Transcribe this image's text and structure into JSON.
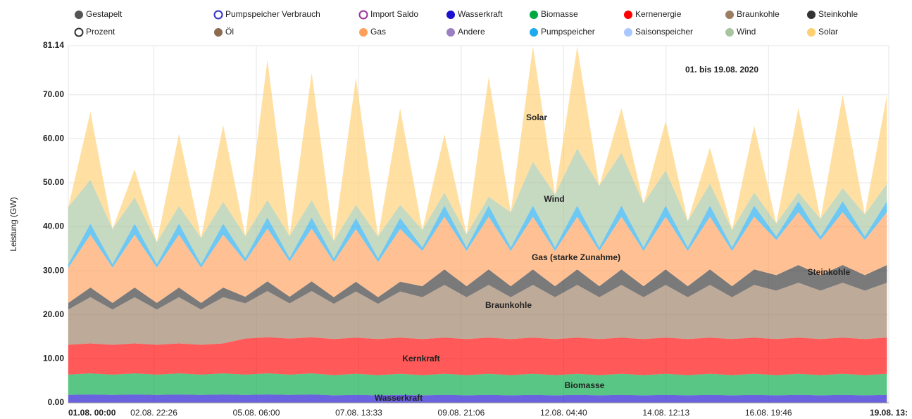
{
  "chart_data": {
    "type": "stacked_area",
    "y_label": "Leistung (GW)",
    "x": [
      0,
      12,
      24,
      36,
      48,
      60,
      72,
      84,
      96,
      108,
      120,
      132,
      144,
      156,
      168,
      180,
      192,
      204,
      216,
      228,
      240,
      252,
      264,
      276,
      288,
      300,
      312,
      324,
      336,
      348,
      360,
      372,
      384,
      396,
      408,
      420,
      432,
      444
    ],
    "xlim": [
      0,
      445
    ],
    "xticks": [
      {
        "value": 0,
        "label": "01.08. 00:00"
      },
      {
        "value": 46.43,
        "label": "02.08. 22:26"
      },
      {
        "value": 102,
        "label": "05.08. 06:00"
      },
      {
        "value": 157.55,
        "label": "07.08. 13:33"
      },
      {
        "value": 213.1,
        "label": "09.08. 21:06"
      },
      {
        "value": 268.67,
        "label": "12.08. 04:40"
      },
      {
        "value": 324.22,
        "label": "14.08. 12:13"
      },
      {
        "value": 379.77,
        "label": "16.08. 19:46"
      },
      {
        "value": 445,
        "label": "19.08. 13:"
      }
    ],
    "ylim": [
      0,
      81.14
    ],
    "yticks": [
      {
        "value": 0,
        "label": "0.00"
      },
      {
        "value": 10,
        "label": "10.00"
      },
      {
        "value": 20,
        "label": "20.00"
      },
      {
        "value": 30,
        "label": "30.00"
      },
      {
        "value": 40,
        "label": "40.00"
      },
      {
        "value": 50,
        "label": "50.00"
      },
      {
        "value": 60,
        "label": "60.00"
      },
      {
        "value": 70,
        "label": "70.00"
      },
      81.14
    ],
    "grid": true,
    "series": [
      {
        "name": "Gestapelt",
        "color": "#555555",
        "hollow": false
      },
      {
        "name": "Pumpspeicher Verbrauch",
        "color": "#3333cc",
        "hollow": true
      },
      {
        "name": "Import Saldo",
        "color": "#993399",
        "hollow": true
      },
      {
        "name": "Wasserkraft",
        "color": "#1a10d0",
        "hollow": false,
        "values": [
          1.8,
          1.9,
          1.8,
          1.9,
          1.8,
          1.9,
          1.8,
          1.9,
          1.8,
          1.9,
          1.8,
          1.9,
          1.7,
          1.8,
          1.7,
          1.8,
          1.7,
          1.8,
          1.7,
          1.8,
          1.7,
          1.8,
          1.7,
          1.8,
          1.7,
          1.8,
          1.7,
          1.8,
          1.7,
          1.8,
          1.7,
          1.8,
          1.7,
          1.8,
          1.7,
          1.8,
          1.7,
          1.8
        ]
      },
      {
        "name": "Biomasse",
        "color": "#00a844",
        "hollow": false,
        "values": [
          4.6,
          4.8,
          4.6,
          4.8,
          4.6,
          4.8,
          4.6,
          4.8,
          4.6,
          4.8,
          4.6,
          4.8,
          4.6,
          4.8,
          4.6,
          4.8,
          4.6,
          4.8,
          4.6,
          4.8,
          4.6,
          4.8,
          4.6,
          4.8,
          4.6,
          4.8,
          4.6,
          4.8,
          4.6,
          4.8,
          4.6,
          4.8,
          4.6,
          4.8,
          4.6,
          4.8,
          4.6,
          4.8
        ]
      },
      {
        "name": "Kernenergie",
        "color": "#ff0000",
        "hollow": false,
        "values": [
          6.8,
          6.8,
          6.8,
          6.8,
          6.8,
          6.8,
          6.8,
          6.8,
          8.2,
          8.2,
          8.2,
          8.2,
          8.2,
          8.2,
          8.2,
          8.2,
          8.2,
          8.2,
          8.2,
          8.2,
          8.2,
          8.2,
          8.2,
          8.2,
          8.2,
          8.2,
          8.2,
          8.2,
          8.2,
          8.2,
          8.2,
          8.2,
          8.2,
          8.2,
          8.2,
          8.2,
          8.2,
          8.2
        ]
      },
      {
        "name": "Braunkohle",
        "color": "#9b7d62",
        "hollow": false,
        "values": [
          8,
          10.5,
          8,
          10.5,
          8,
          10.5,
          8,
          10.5,
          8,
          10.5,
          8,
          10.5,
          8,
          10.5,
          8,
          10.5,
          9.5,
          12,
          9.5,
          12,
          9.5,
          12,
          9.5,
          12,
          9.5,
          12,
          9.5,
          12,
          9.5,
          12,
          9.5,
          12,
          11,
          12.5,
          11,
          12.5,
          11,
          12.5
        ]
      },
      {
        "name": "Steinkohle",
        "color": "#333333",
        "hollow": false,
        "values": [
          1.5,
          2.2,
          1.5,
          2.2,
          1.5,
          2.2,
          1.5,
          2.2,
          1.5,
          2.2,
          1.5,
          2.2,
          1.5,
          2.2,
          1.5,
          2.2,
          2.5,
          3.5,
          2.5,
          3.5,
          2.5,
          3.5,
          2.5,
          3.5,
          2.5,
          3.5,
          2.5,
          3.5,
          2.5,
          3.5,
          2.5,
          3.5,
          3.5,
          4,
          3.5,
          4,
          3.5,
          4
        ]
      },
      {
        "name": "Prozent",
        "color": "#333333",
        "hollow": true
      },
      {
        "name": "Öl",
        "color": "#8b6c50",
        "hollow": false
      },
      {
        "name": "Gas",
        "color": "#ff9f5a",
        "hollow": false,
        "values": [
          8,
          12,
          8,
          12,
          8,
          12,
          8,
          12,
          8,
          12,
          8,
          12,
          8,
          12,
          8,
          12,
          8,
          12,
          8,
          12,
          8,
          12,
          8,
          12,
          8,
          12,
          8,
          12,
          8,
          12,
          8,
          12,
          8,
          12,
          8,
          12,
          8,
          12
        ]
      },
      {
        "name": "Andere",
        "color": "#9b7fc0",
        "hollow": false
      },
      {
        "name": "Pumpspeicher",
        "color": "#1eaaee",
        "hollow": false,
        "values": [
          0.8,
          2.5,
          0.8,
          2.5,
          0.8,
          2.5,
          0.8,
          2.5,
          0.8,
          2.5,
          0.8,
          2.5,
          0.8,
          2.5,
          0.8,
          2.5,
          0.8,
          2.5,
          0.8,
          2.5,
          0.8,
          2.5,
          0.8,
          2.5,
          0.8,
          2.5,
          0.8,
          2.5,
          0.8,
          2.5,
          0.8,
          2.5,
          0.8,
          2.5,
          0.8,
          2.5,
          0.8,
          2.5
        ]
      },
      {
        "name": "Saisonspeicher",
        "color": "#a8c8ff",
        "hollow": false
      },
      {
        "name": "Wind",
        "color": "#a8c4a0",
        "hollow": false,
        "values": [
          13,
          10,
          8,
          6,
          5,
          4,
          6,
          5,
          5,
          4,
          5,
          4,
          4,
          3,
          5,
          3,
          4,
          3,
          3,
          2,
          8,
          10,
          12,
          13,
          14,
          12,
          10,
          8,
          6,
          5,
          4,
          3,
          3,
          2,
          4,
          3,
          5,
          4
        ]
      },
      {
        "name": "Solar",
        "color": "#ffcf70",
        "hollow": false,
        "values": [
          0,
          15.4,
          0,
          6.4,
          0,
          16.4,
          0,
          17.4,
          0,
          31.9,
          0,
          28.9,
          0,
          28.9,
          0,
          21.9,
          0,
          13.2,
          0,
          27.2,
          0,
          26.2,
          0,
          23.2,
          0,
          10.2,
          0,
          11.2,
          0,
          8.2,
          0,
          15.2,
          0,
          19.2,
          0,
          21.2,
          0,
          20.2
        ]
      }
    ],
    "annotations": [
      "01. bis 19.08. 2020",
      "Solar",
      "Wind",
      "Gas (starke Zunahme)",
      "Steinkohle",
      "Braunkohle",
      "Kernkraft",
      "Biomasse",
      "Wasserkraft"
    ]
  }
}
